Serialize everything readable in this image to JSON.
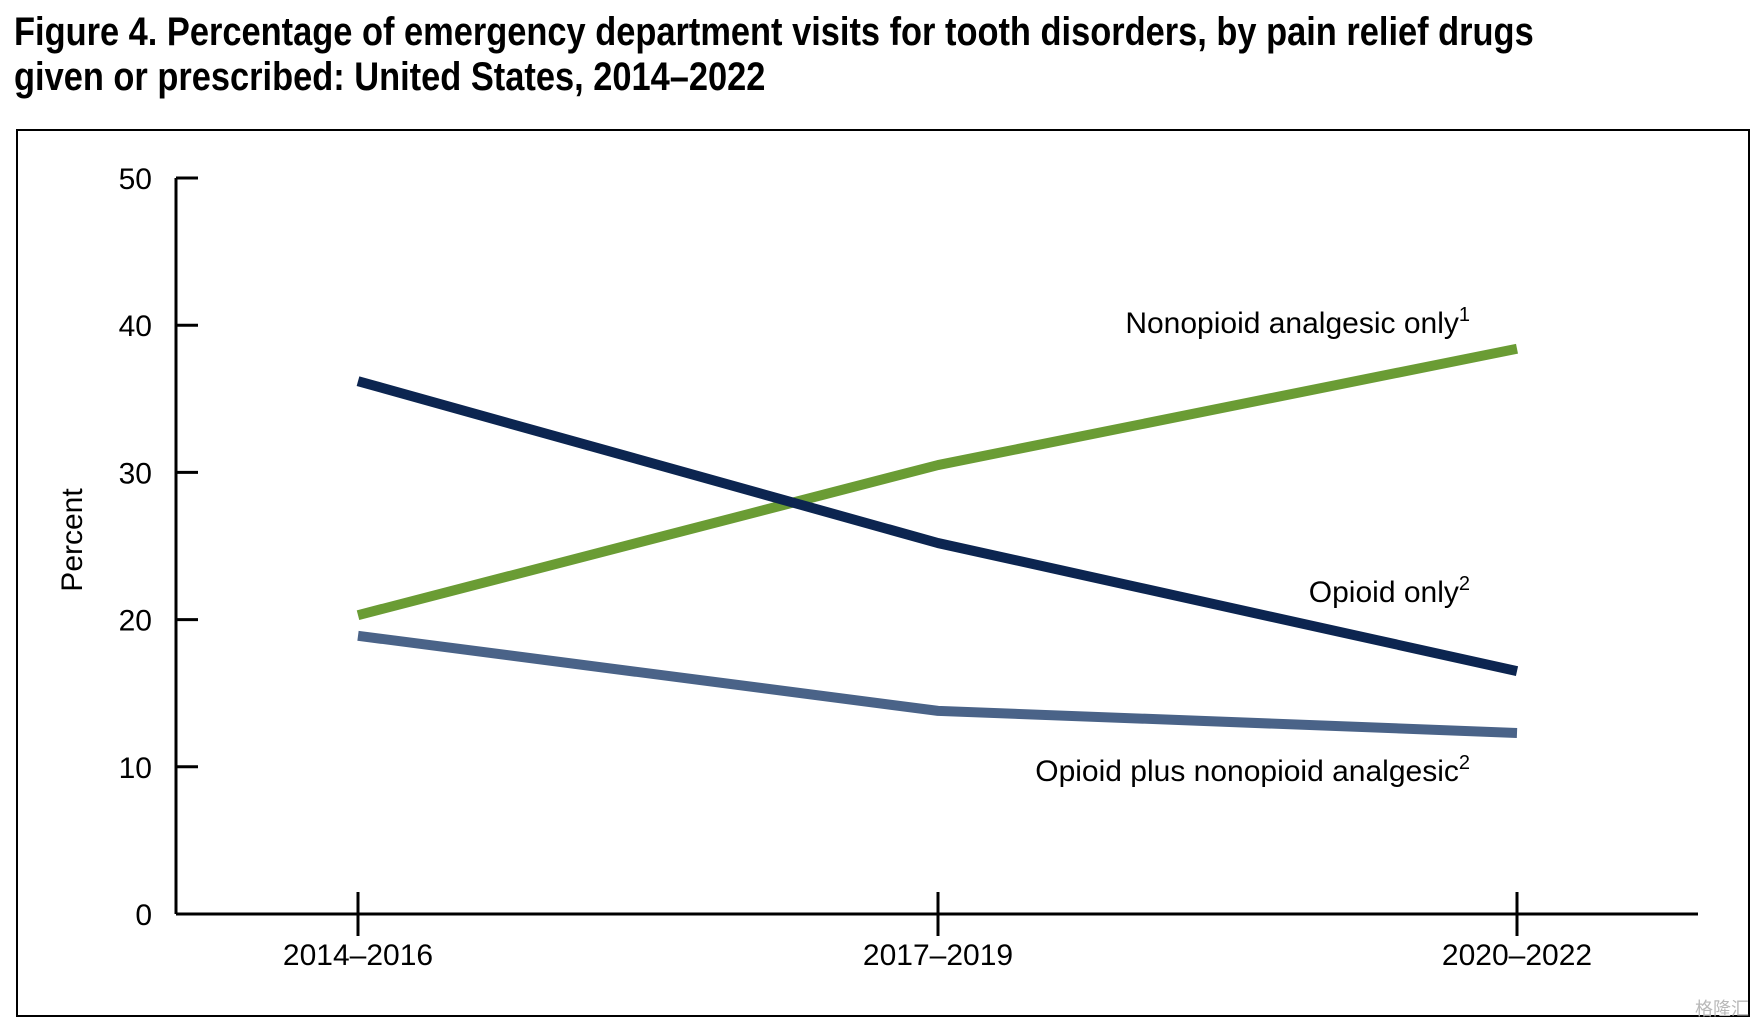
{
  "title_line1": "Figure 4. Percentage of emergency department visits for tooth disorders, by pain relief drugs",
  "title_line2": "given or prescribed: United States, 2014–2022",
  "watermark": "格隆汇",
  "chart_data": {
    "type": "line",
    "title": "Figure 4. Percentage of emergency department visits for tooth disorders, by pain relief drugs given or prescribed: United States, 2014–2022",
    "xlabel": "",
    "ylabel": "Percent",
    "categories": [
      "2014–2016",
      "2017–2019",
      "2020–2022"
    ],
    "ylim": [
      0,
      50
    ],
    "yticks": [
      0,
      10,
      20,
      30,
      40,
      50
    ],
    "grid": false,
    "series": [
      {
        "name": "Nonopioid analgesic only",
        "footnote": "1",
        "color": "#6a9c34",
        "values": [
          20.3,
          30.5,
          38.4
        ]
      },
      {
        "name": "Opioid only",
        "footnote": "2",
        "color": "#0c2550",
        "values": [
          36.2,
          25.2,
          16.5
        ]
      },
      {
        "name": "Opioid plus nonopioid analgesic",
        "footnote": "2",
        "color": "#4a6388",
        "values": [
          18.9,
          13.8,
          12.3
        ]
      }
    ]
  }
}
